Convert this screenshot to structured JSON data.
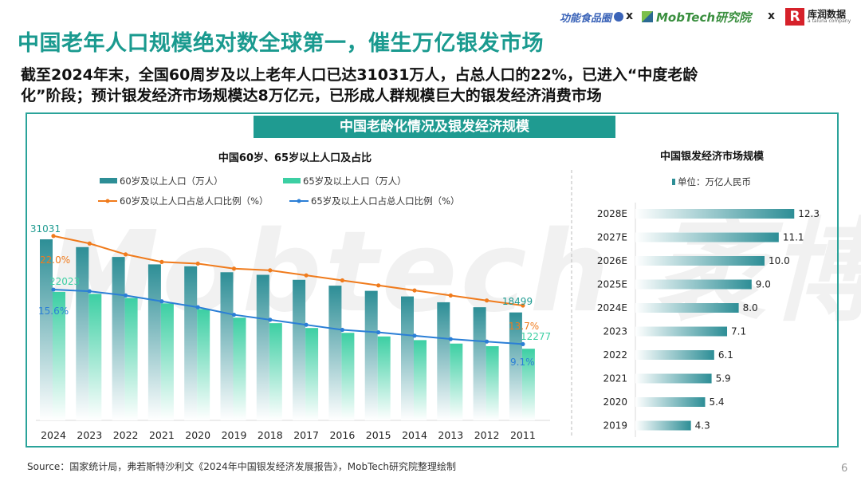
{
  "header": {
    "title": "中国老年人口规模绝对数全球第一，催生万亿银发市场",
    "subtitle_line1": "截至2024年末，全国60周岁及以上老年人口已达31031万人，占总人口的22%，已进入“中度老龄",
    "subtitle_line2": "化”阶段；预计银发经济市场规模达8万亿元，已形成人群规模巨大的银发经济消费市场"
  },
  "logos": {
    "logo1": "功能食品圈",
    "logo2": "MobTech研究院",
    "logo3": "库润数据",
    "logo3_sub": "a taluna company",
    "separator": "x"
  },
  "panel": {
    "banner": "中国老龄化情况及银发经济规模",
    "watermark": "Mobtech 袤博"
  },
  "chart_data": [
    {
      "type": "bar",
      "title": "中国60岁、65岁以上人口及占比",
      "categories": [
        "2024",
        "2023",
        "2022",
        "2021",
        "2020",
        "2019",
        "2018",
        "2017",
        "2016",
        "2015",
        "2014",
        "2013",
        "2012",
        "2011"
      ],
      "series": [
        {
          "name": "60岁及以上人口（万人）",
          "kind": "bar",
          "values": [
            31031,
            29697,
            28004,
            26736,
            26402,
            25388,
            24949,
            24090,
            23086,
            22200,
            21242,
            20243,
            19390,
            18499
          ]
        },
        {
          "name": "65岁及以上人口（万人）",
          "kind": "bar",
          "values": [
            22023,
            21676,
            20978,
            20056,
            19064,
            17603,
            16658,
            15831,
            15003,
            14386,
            13755,
            13161,
            12714,
            12277
          ]
        },
        {
          "name": "60岁及以上人口占总人口比例（%）",
          "kind": "line",
          "values": [
            22.0,
            21.1,
            19.8,
            18.9,
            18.7,
            18.1,
            17.9,
            17.3,
            16.7,
            16.1,
            15.5,
            14.9,
            14.3,
            13.7
          ]
        },
        {
          "name": "65岁及以上人口占总人口比例（%）",
          "kind": "line",
          "values": [
            15.6,
            15.4,
            14.9,
            14.2,
            13.5,
            12.6,
            12.0,
            11.4,
            10.8,
            10.5,
            10.1,
            9.7,
            9.4,
            9.1
          ]
        }
      ],
      "data_labels": {
        "pop60_first": "31031",
        "pop60_last": "18499",
        "pop65_first": "22023",
        "pop65_last": "12277",
        "pct60_first": "22.0%",
        "pct60_last": "13.7%",
        "pct65_first": "15.6%",
        "pct65_last": "9.1%"
      },
      "legend_position": "top",
      "colors": {
        "bar60": "#2d8e96",
        "bar65": "#3ccfa3",
        "line60": "#f07b1c",
        "line65": "#2b7fd6"
      }
    },
    {
      "type": "bar",
      "orientation": "horizontal",
      "title": "中国银发经济市场规模",
      "legend": "单位：万亿人民币",
      "categories": [
        "2028E",
        "2027E",
        "2026E",
        "2025E",
        "2024E",
        "2023",
        "2022",
        "2021",
        "2020",
        "2019"
      ],
      "values": [
        12.3,
        11.1,
        10.0,
        9.0,
        8.0,
        7.1,
        6.1,
        5.9,
        5.4,
        4.3
      ],
      "value_labels": [
        "12.3",
        "11.1",
        "10.0",
        "9.0",
        "8.0",
        "7.1",
        "6.1",
        "5.9",
        "5.4",
        "4.3"
      ],
      "colors": {
        "bar": "#2d8e96"
      }
    }
  ],
  "footer": {
    "source": "Source：国家统计局，弗若斯特沙利文《2024年中国银发经济发展报告》，MobTech研究院整理绘制",
    "page": "6"
  }
}
